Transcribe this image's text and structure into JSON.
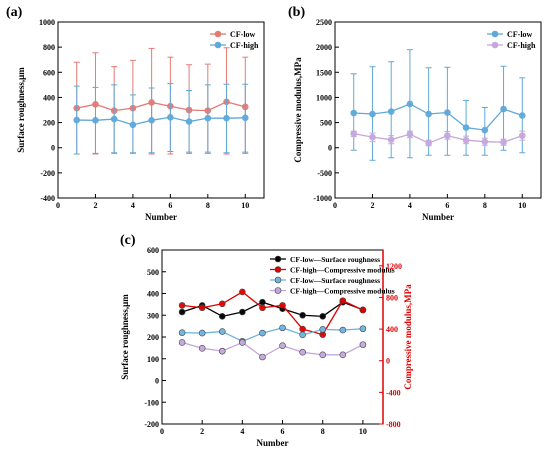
{
  "colors": {
    "cf_low": "#e57a74",
    "cf_high": "#5fa9d9",
    "cf_low_dark": "#000000",
    "cf_high_red": "#e00000",
    "cf_low_c": "#6fb3de",
    "cf_high_c": "#c4a8dc",
    "red_axis": "#e00000"
  },
  "chart_data": [
    {
      "panel_label": "(a)",
      "type": "line",
      "xlabel": "Number",
      "ylabel": "Surface roughness,μm",
      "xlim": [
        0,
        11
      ],
      "ylim": [
        -400,
        1000
      ],
      "xticks": [
        0,
        2,
        4,
        6,
        8,
        10
      ],
      "yticks": [
        -400,
        -200,
        0,
        200,
        400,
        600,
        800,
        1000
      ],
      "legend_position": "top-right",
      "grid": false,
      "x": [
        1,
        2,
        3,
        4,
        5,
        6,
        7,
        8,
        9,
        10
      ],
      "series": [
        {
          "name": "CF-low",
          "color_key": "cf_low",
          "values": [
            315,
            345,
            295,
            315,
            360,
            330,
            300,
            295,
            365,
            325
          ],
          "err_upper": [
            680,
            755,
            645,
            695,
            790,
            720,
            660,
            665,
            795,
            720
          ],
          "err_lower": [
            -50,
            -50,
            -45,
            -45,
            -50,
            -50,
            -45,
            -45,
            -50,
            -45
          ]
        },
        {
          "name": "CF-high",
          "color_key": "cf_high",
          "values": [
            220,
            218,
            228,
            182,
            218,
            242,
            208,
            235,
            235,
            238
          ],
          "err_upper": [
            490,
            480,
            500,
            420,
            475,
            510,
            455,
            500,
            505,
            505
          ],
          "err_lower": [
            -50,
            -45,
            -40,
            -40,
            -40,
            -30,
            -35,
            -35,
            -40,
            -35
          ]
        }
      ]
    },
    {
      "panel_label": "(b)",
      "type": "line",
      "xlabel": "Number",
      "ylabel": "Compressive modulus,MPa",
      "xlim": [
        0,
        11
      ],
      "ylim": [
        -1000,
        2500
      ],
      "xticks": [
        0,
        2,
        4,
        6,
        8,
        10
      ],
      "yticks": [
        -1000,
        -500,
        0,
        500,
        1000,
        1500,
        2000,
        2500
      ],
      "legend_position": "top-right",
      "grid": false,
      "x": [
        1,
        2,
        3,
        4,
        5,
        6,
        7,
        8,
        9,
        10
      ],
      "series": [
        {
          "name": "CF-low",
          "color_key": "cf_high",
          "values": [
            690,
            670,
            720,
            870,
            670,
            700,
            400,
            350,
            770,
            640
          ],
          "err_upper": [
            1470,
            1610,
            1710,
            1950,
            1590,
            1600,
            940,
            800,
            1620,
            1390
          ],
          "err_lower": [
            -50,
            -250,
            -200,
            -200,
            -150,
            -150,
            -150,
            -150,
            -50,
            -100
          ]
        },
        {
          "name": "CF-high",
          "color_key": "cf_high_c",
          "values": [
            280,
            210,
            160,
            270,
            90,
            240,
            150,
            120,
            110,
            240
          ],
          "err_upper": [
            330,
            290,
            240,
            330,
            150,
            320,
            230,
            190,
            170,
            330
          ],
          "err_lower": [
            220,
            120,
            80,
            200,
            40,
            170,
            80,
            50,
            50,
            150
          ]
        }
      ]
    },
    {
      "panel_label": "(c)",
      "type": "line",
      "xlabel": "Number",
      "ylabel": "Surface roughness,μm",
      "ylabel_right": "Compressive modulus,MPa",
      "xlim": [
        0,
        11
      ],
      "ylim": [
        -200,
        600
      ],
      "ylim_right": [
        -800,
        1400
      ],
      "xticks": [
        0,
        2,
        4,
        6,
        8,
        10
      ],
      "yticks": [
        -200,
        -100,
        0,
        100,
        200,
        300,
        400,
        500,
        600
      ],
      "yticks_right": [
        -800,
        -400,
        0,
        400,
        800,
        1200
      ],
      "legend_position": "top-center",
      "grid": false,
      "x": [
        1,
        2,
        3,
        4,
        5,
        6,
        7,
        8,
        9,
        10
      ],
      "series": [
        {
          "name": "CF-low—Surface roughness",
          "axis": "left",
          "color_key": "cf_low_dark",
          "values": [
            315,
            345,
            295,
            315,
            360,
            330,
            300,
            295,
            360,
            325
          ]
        },
        {
          "name": "CF-high—Compressive modulus",
          "axis": "right",
          "color_key": "cf_high_red",
          "values": [
            700,
            670,
            720,
            870,
            670,
            700,
            400,
            330,
            760,
            640
          ]
        },
        {
          "name": "CF-low—Surface roughness",
          "axis": "left",
          "color_key": "cf_low_c",
          "values": [
            220,
            218,
            225,
            180,
            218,
            242,
            210,
            235,
            232,
            238
          ]
        },
        {
          "name": "CF-high—Compressive modulus",
          "axis": "left",
          "color_key": "cf_high_c",
          "values": [
            175,
            148,
            135,
            175,
            108,
            160,
            130,
            118,
            118,
            165
          ]
        }
      ]
    }
  ]
}
